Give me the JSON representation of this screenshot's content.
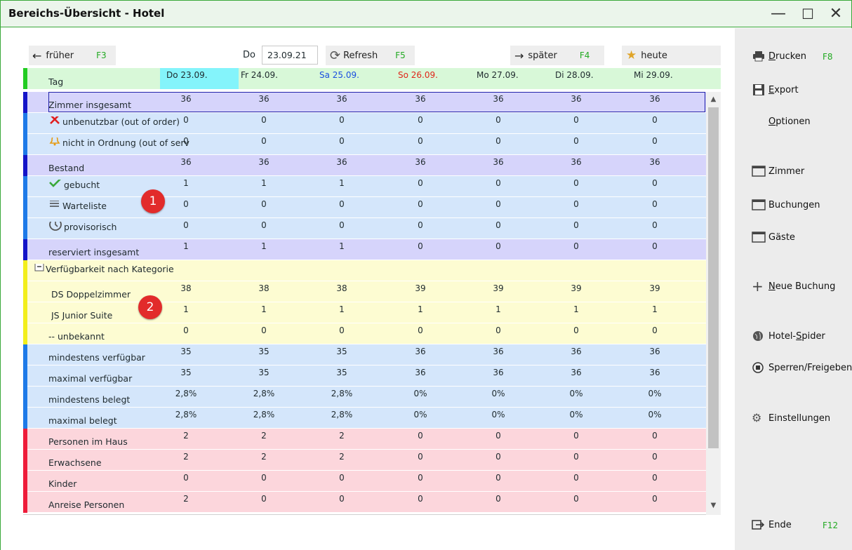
{
  "window": {
    "title": "Bereichs-Übersicht - Hotel",
    "minimize": "—",
    "maximize": "☐",
    "close": "✕"
  },
  "nav": {
    "earlier_label": "früher",
    "earlier_key": "F3",
    "date_prefix": "Do",
    "date_value": "23.09.21",
    "refresh_label": "Refresh",
    "refresh_key": "F5",
    "later_label": "später",
    "later_key": "F4",
    "today_label": "heute"
  },
  "header": {
    "tag_label": "Tag",
    "days": [
      {
        "label": "Do 23.09.",
        "color": "#1f2a2e"
      },
      {
        "label": "Fr 24.09.",
        "color": "#1f2a2e"
      },
      {
        "label": "Sa 25.09.",
        "color": "#1a4ee0"
      },
      {
        "label": "So 26.09.",
        "color": "#e0261a"
      },
      {
        "label": "Mo 27.09.",
        "color": "#1f2a2e"
      },
      {
        "label": "Di 28.09.",
        "color": "#1f2a2e"
      },
      {
        "label": "Mi 29.09.",
        "color": "#1f2a2e"
      }
    ]
  },
  "rows": [
    {
      "label": "Zimmer insgesamt",
      "icon": "",
      "bg": "#d6d4fb",
      "bar": "#1414c8",
      "values": [
        "36",
        "36",
        "36",
        "36",
        "36",
        "36",
        "36"
      ]
    },
    {
      "label": "unbenutzbar (out of order)",
      "icon": "cross-icon",
      "bg": "#d4e6fb",
      "bar": "#1e7ae8",
      "values": [
        "0",
        "0",
        "0",
        "0",
        "0",
        "0",
        "0"
      ]
    },
    {
      "label": "nicht in Ordnung (out of service)",
      "icon": "bell-icon",
      "bg": "#d4e6fb",
      "bar": "#1e7ae8",
      "values": [
        "0",
        "0",
        "0",
        "0",
        "0",
        "0",
        "0"
      ]
    },
    {
      "label": "Bestand",
      "icon": "",
      "bg": "#d6d4fb",
      "bar": "#1414c8",
      "values": [
        "36",
        "36",
        "36",
        "36",
        "36",
        "36",
        "36"
      ]
    },
    {
      "label": "gebucht",
      "icon": "check-icon",
      "bg": "#d4e6fb",
      "bar": "#1e7ae8",
      "values": [
        "1",
        "1",
        "1",
        "0",
        "0",
        "0",
        "0"
      ]
    },
    {
      "label": "Warteliste",
      "icon": "list-icon",
      "bg": "#d4e6fb",
      "bar": "#1e7ae8",
      "values": [
        "0",
        "0",
        "0",
        "0",
        "0",
        "0",
        "0"
      ]
    },
    {
      "label": "provisorisch",
      "icon": "clock-icon",
      "bg": "#d4e6fb",
      "bar": "#1e7ae8",
      "values": [
        "0",
        "0",
        "0",
        "0",
        "0",
        "0",
        "0"
      ]
    },
    {
      "label": "reserviert insgesamt",
      "icon": "",
      "bg": "#d6d4fb",
      "bar": "#1414c8",
      "values": [
        "1",
        "1",
        "1",
        "0",
        "0",
        "0",
        "0"
      ]
    },
    {
      "label": "Verfügbarkeit nach Kategorie",
      "icon": "collapse-icon",
      "bg": "#fdfcd2",
      "bar": "#f2ee1c",
      "values": [
        "",
        "",
        "",
        "",
        "",
        "",
        ""
      ]
    },
    {
      "label": "DS Doppelzimmer",
      "icon": "",
      "bg": "#fdfcd2",
      "bar": "#f2ee1c",
      "values": [
        "38",
        "38",
        "38",
        "39",
        "39",
        "39",
        "39"
      ]
    },
    {
      "label": "JS Junior Suite",
      "icon": "",
      "bg": "#fdfcd2",
      "bar": "#f2ee1c",
      "values": [
        "1",
        "1",
        "1",
        "1",
        "1",
        "1",
        "1"
      ]
    },
    {
      "label": "-- unbekannt",
      "icon": "",
      "bg": "#fdfcd2",
      "bar": "#f2ee1c",
      "values": [
        "0",
        "0",
        "0",
        "0",
        "0",
        "0",
        "0"
      ]
    },
    {
      "label": "mindestens verfügbar",
      "icon": "",
      "bg": "#d4e6fb",
      "bar": "#1e7ae8",
      "values": [
        "35",
        "35",
        "35",
        "36",
        "36",
        "36",
        "36"
      ]
    },
    {
      "label": "maximal verfügbar",
      "icon": "",
      "bg": "#d4e6fb",
      "bar": "#1e7ae8",
      "values": [
        "35",
        "35",
        "35",
        "36",
        "36",
        "36",
        "36"
      ]
    },
    {
      "label": "mindestens belegt",
      "icon": "",
      "bg": "#d4e6fb",
      "bar": "#1e7ae8",
      "values": [
        "2,8%",
        "2,8%",
        "2,8%",
        "0%",
        "0%",
        "0%",
        "0%"
      ]
    },
    {
      "label": "maximal belegt",
      "icon": "",
      "bg": "#d4e6fb",
      "bar": "#1e7ae8",
      "values": [
        "2,8%",
        "2,8%",
        "2,8%",
        "0%",
        "0%",
        "0%",
        "0%"
      ]
    },
    {
      "label": "Personen im Haus",
      "icon": "",
      "bg": "#fcd6dc",
      "bar": "#ee1c3a",
      "values": [
        "2",
        "2",
        "2",
        "0",
        "0",
        "0",
        "0"
      ]
    },
    {
      "label": "Erwachsene",
      "icon": "",
      "bg": "#fcd6dc",
      "bar": "#ee1c3a",
      "values": [
        "2",
        "2",
        "2",
        "0",
        "0",
        "0",
        "0"
      ]
    },
    {
      "label": "Kinder",
      "icon": "",
      "bg": "#fcd6dc",
      "bar": "#ee1c3a",
      "values": [
        "0",
        "0",
        "0",
        "0",
        "0",
        "0",
        "0"
      ]
    },
    {
      "label": "Anreise Personen",
      "icon": "",
      "bg": "#fcd6dc",
      "bar": "#ee1c3a",
      "values": [
        "2",
        "0",
        "0",
        "0",
        "0",
        "0",
        "0"
      ]
    }
  ],
  "badges": [
    "1",
    "2"
  ],
  "sidebar": {
    "print_label": "Drucken",
    "print_underline": "D",
    "print_rest": "rucken",
    "print_key": "F8",
    "export_label": "Export",
    "export_underline": "E",
    "export_rest": "xport",
    "options_label": "Optionen",
    "options_underline": "O",
    "options_rest": "ptionen",
    "rooms_label": "Zimmer",
    "bookings_label": "Buchungen",
    "guests_label": "Gäste",
    "new_booking_underline": "N",
    "new_booking_rest": "eue Buchung",
    "spider_pre": "Hotel-",
    "spider_underline": "S",
    "spider_rest": "pider",
    "lock_label": "Sperren/Freigeben",
    "settings_label": "Einstellungen",
    "end_label": "Ende",
    "end_key": "F12"
  },
  "colors": {
    "accent": "#3aa83a",
    "fkey": "#22aa22",
    "highlight_day": "#84f4fb"
  }
}
